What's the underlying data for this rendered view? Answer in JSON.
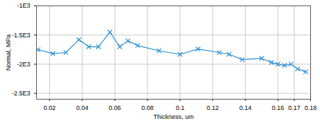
{
  "chart_data": {
    "type": "line",
    "x_label": "Thickness, um",
    "y_label": "Normal, MPa",
    "x": [
      0.013,
      0.022,
      0.03,
      0.038,
      0.044,
      0.05,
      0.057,
      0.063,
      0.068,
      0.074,
      0.087,
      0.1,
      0.111,
      0.124,
      0.13,
      0.138,
      0.15,
      0.156,
      0.16,
      0.164,
      0.168,
      0.172,
      0.177
    ],
    "values": [
      -1750,
      -1820,
      -1800,
      -1580,
      -1700,
      -1700,
      -1450,
      -1700,
      -1600,
      -1680,
      -1770,
      -1830,
      -1740,
      -1800,
      -1830,
      -1920,
      -1900,
      -1970,
      -2000,
      -2020,
      -2000,
      -2080,
      -2130
    ],
    "color": "#2b8fd6",
    "marker": "x",
    "xlim": [
      0.012,
      0.18
    ],
    "xticks": [
      0.02,
      0.04,
      0.06,
      0.08,
      0.1,
      0.12,
      0.14,
      0.16,
      0.17,
      0.18
    ],
    "ylim": [
      -2600,
      -1000
    ],
    "yticks": [
      {
        "value": -1000,
        "label": "-1E3"
      },
      {
        "value": -1500,
        "label": "-1.5E3"
      },
      {
        "value": -2000,
        "label": "-2E3"
      },
      {
        "value": -2500,
        "label": "-2.5E3"
      }
    ],
    "grid": true
  }
}
